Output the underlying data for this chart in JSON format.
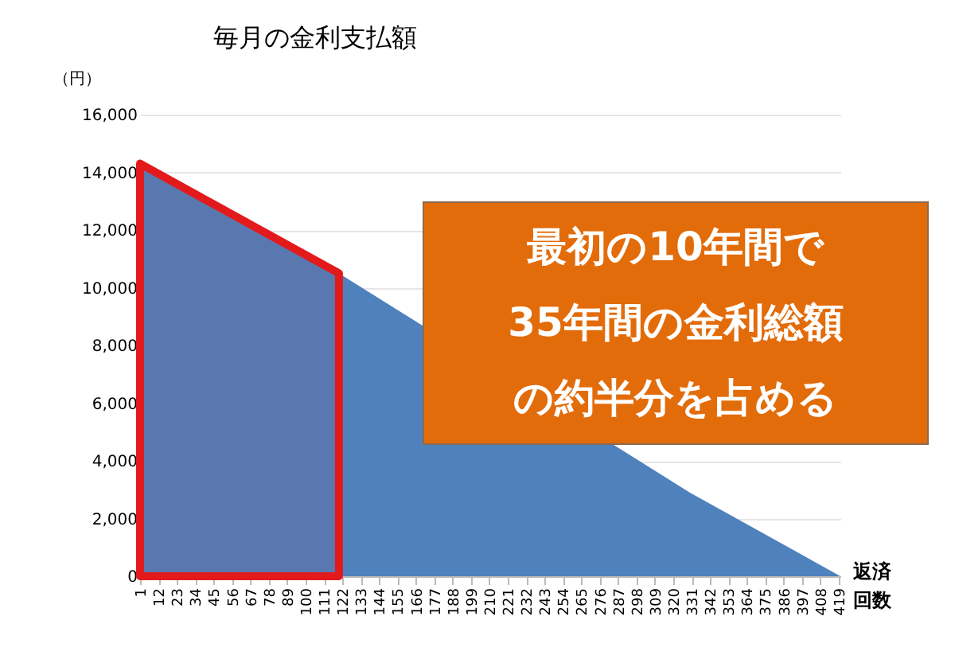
{
  "chart_data": {
    "type": "area",
    "title": "毎月の金利支払額",
    "ylabel": "（円）",
    "xlabel": "返済回数",
    "x": [
      1,
      120,
      330,
      420
    ],
    "series": [
      {
        "color": "#4f81bd",
        "values": [
          14300,
          10500,
          2900,
          0
        ]
      }
    ],
    "xlim": [
      1,
      420
    ],
    "xticks": [
      1,
      12,
      23,
      34,
      45,
      56,
      67,
      78,
      89,
      100,
      111,
      122,
      133,
      144,
      155,
      166,
      177,
      188,
      199,
      210,
      221,
      232,
      243,
      254,
      265,
      276,
      287,
      298,
      309,
      320,
      331,
      342,
      353,
      364,
      375,
      386,
      397,
      408,
      419
    ],
    "ylim": [
      0,
      16000
    ],
    "yticks": [
      {
        "value": 0,
        "label": "0"
      },
      {
        "value": 2000,
        "label": "2,000"
      },
      {
        "value": 4000,
        "label": "4,000"
      },
      {
        "value": 6000,
        "label": "6,000"
      },
      {
        "value": 8000,
        "label": "8,000"
      },
      {
        "value": 10000,
        "label": "10,000"
      },
      {
        "value": 12000,
        "label": "12,000"
      },
      {
        "value": 14000,
        "label": "14,000"
      },
      {
        "value": 16000,
        "label": "16,000"
      }
    ],
    "grid": "y",
    "bands": [
      {
        "axis": "x",
        "from": 1,
        "to": 120,
        "color": "#e31a1c"
      }
    ],
    "annotations": [
      "最初の10年間で",
      "35年間の金利総額",
      "の約半分を占める"
    ]
  }
}
